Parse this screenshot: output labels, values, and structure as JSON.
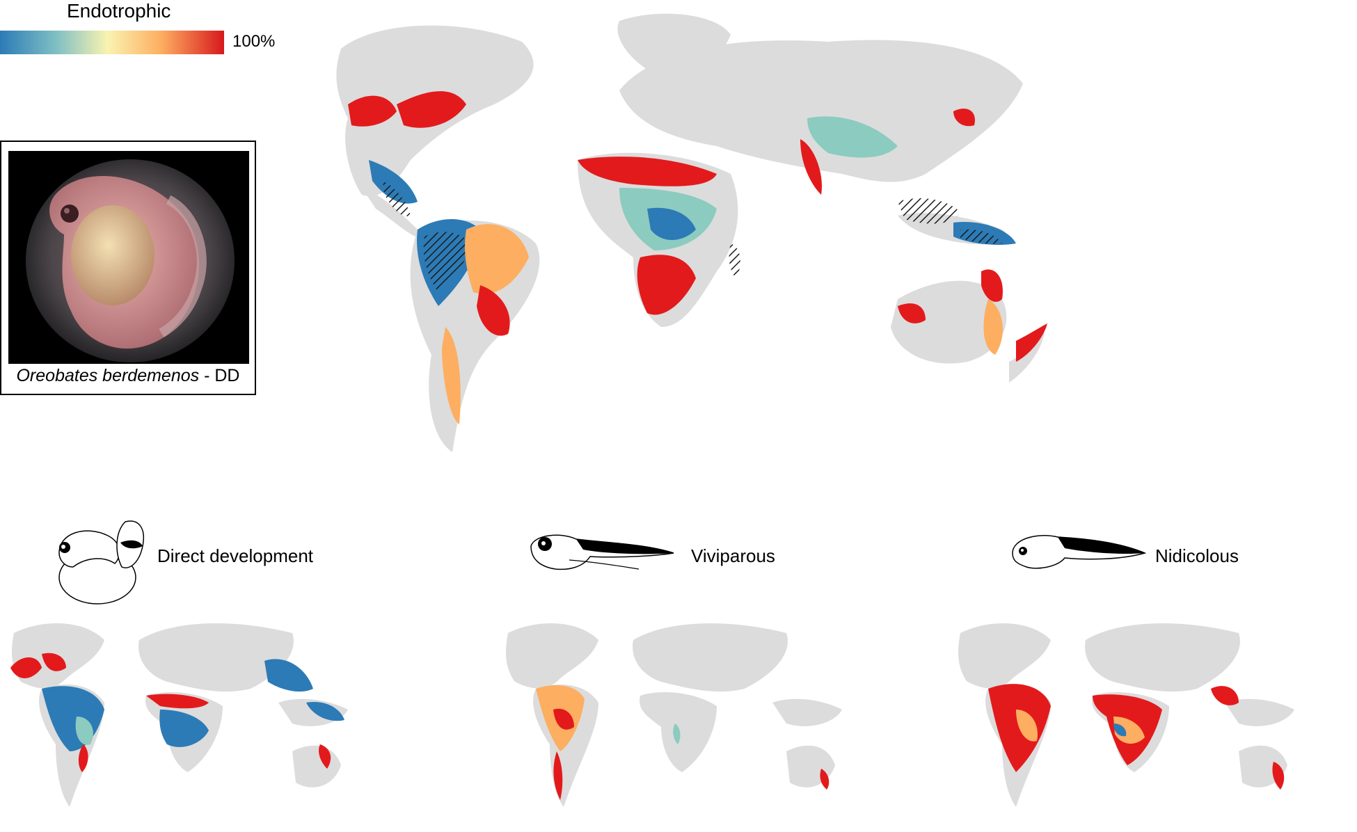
{
  "legend": {
    "title": "Endotrophic",
    "max_label": "100%",
    "colors": [
      "#2c7bb6",
      "#7fbfc4",
      "#f9f3b0",
      "#fdae61",
      "#d7191c"
    ]
  },
  "photo": {
    "species": "Oreobates berdemenos",
    "status": "- DD"
  },
  "modes": [
    {
      "label": "Direct development",
      "icon": "direct-development-embryo-icon"
    },
    {
      "label": "Viviparous",
      "icon": "tadpole-icon"
    },
    {
      "label": "Nidicolous",
      "icon": "tadpole-icon"
    }
  ],
  "map_colors": {
    "land": "#dcdcdc",
    "low": "#2c7bb6",
    "mid_low": "#8ccbbf",
    "mid": "#f4f1b0",
    "mid_high": "#fdae61",
    "high": "#e31a1c",
    "hatch": "#1a1a1a"
  }
}
